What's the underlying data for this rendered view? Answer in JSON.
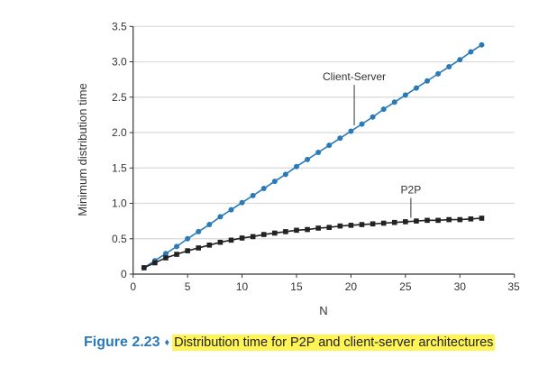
{
  "chart_data": {
    "type": "line",
    "title": "",
    "xlabel": "N",
    "ylabel": "Minimum distribution time",
    "xlim": [
      0,
      35
    ],
    "ylim": [
      0,
      3.5
    ],
    "xticks": [
      "0",
      "5",
      "10",
      "15",
      "20",
      "25",
      "30",
      "35"
    ],
    "yticks": [
      "0",
      "0.5",
      "1.0",
      "1.5",
      "2.0",
      "2.5",
      "3.0",
      "3.5"
    ],
    "grid": "horizontal",
    "x": [
      1,
      2,
      3,
      4,
      5,
      6,
      7,
      8,
      9,
      10,
      11,
      12,
      13,
      14,
      15,
      16,
      17,
      18,
      19,
      20,
      21,
      22,
      23,
      24,
      25,
      26,
      27,
      28,
      29,
      30,
      31,
      32
    ],
    "series": [
      {
        "name": "Client-Server",
        "color": "#2a7ab8",
        "marker": "circle",
        "values": [
          0.09,
          0.19,
          0.29,
          0.39,
          0.5,
          0.6,
          0.7,
          0.81,
          0.91,
          1.01,
          1.11,
          1.21,
          1.31,
          1.41,
          1.52,
          1.62,
          1.72,
          1.82,
          1.92,
          2.02,
          2.12,
          2.22,
          2.33,
          2.43,
          2.53,
          2.63,
          2.73,
          2.83,
          2.93,
          3.03,
          3.14,
          3.24
        ]
      },
      {
        "name": "P2P",
        "color": "#222222",
        "marker": "square",
        "values": [
          0.09,
          0.16,
          0.23,
          0.28,
          0.33,
          0.37,
          0.41,
          0.45,
          0.48,
          0.51,
          0.53,
          0.56,
          0.58,
          0.6,
          0.62,
          0.63,
          0.65,
          0.66,
          0.68,
          0.69,
          0.7,
          0.71,
          0.72,
          0.73,
          0.74,
          0.75,
          0.76,
          0.76,
          0.77,
          0.77,
          0.78,
          0.79
        ]
      }
    ],
    "annotations": [
      {
        "text": "Client-Server",
        "series": "Client-Server",
        "at_x": 20.3
      },
      {
        "text": "P2P",
        "series": "P2P",
        "at_x": 25.5
      }
    ]
  },
  "caption": {
    "figure_label": "Figure 2.23",
    "separator": "♦",
    "text": "Distribution time for P2P and client-server architectures"
  }
}
